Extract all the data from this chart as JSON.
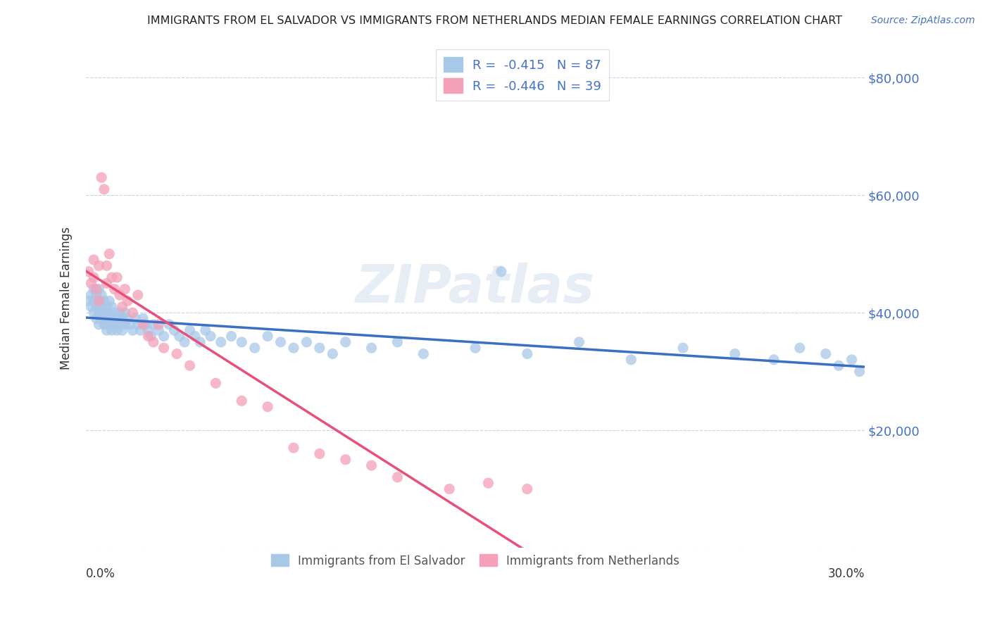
{
  "title": "IMMIGRANTS FROM EL SALVADOR VS IMMIGRANTS FROM NETHERLANDS MEDIAN FEMALE EARNINGS CORRELATION CHART",
  "source": "Source: ZipAtlas.com",
  "ylabel": "Median Female Earnings",
  "watermark": "ZIPatlas",
  "el_salvador": {
    "color": "#a8c8e8",
    "line_color": "#3a6fc4",
    "R": -0.415,
    "N": 87,
    "x": [
      0.001,
      0.002,
      0.002,
      0.003,
      0.003,
      0.003,
      0.004,
      0.004,
      0.004,
      0.005,
      0.005,
      0.005,
      0.005,
      0.006,
      0.006,
      0.006,
      0.007,
      0.007,
      0.007,
      0.008,
      0.008,
      0.008,
      0.009,
      0.009,
      0.009,
      0.01,
      0.01,
      0.01,
      0.011,
      0.011,
      0.012,
      0.012,
      0.013,
      0.013,
      0.014,
      0.014,
      0.015,
      0.015,
      0.016,
      0.017,
      0.018,
      0.019,
      0.02,
      0.021,
      0.022,
      0.023,
      0.024,
      0.025,
      0.026,
      0.028,
      0.03,
      0.032,
      0.034,
      0.036,
      0.038,
      0.04,
      0.042,
      0.044,
      0.046,
      0.048,
      0.052,
      0.056,
      0.06,
      0.065,
      0.07,
      0.075,
      0.08,
      0.085,
      0.09,
      0.095,
      0.1,
      0.11,
      0.12,
      0.13,
      0.15,
      0.16,
      0.17,
      0.19,
      0.21,
      0.23,
      0.25,
      0.265,
      0.275,
      0.285,
      0.29,
      0.295,
      0.298
    ],
    "y": [
      42000,
      43000,
      41000,
      40000,
      42000,
      44000,
      41000,
      39000,
      43000,
      40000,
      38000,
      42000,
      44000,
      39000,
      41000,
      43000,
      40000,
      38000,
      42000,
      39000,
      41000,
      37000,
      40000,
      38000,
      42000,
      39000,
      41000,
      37000,
      40000,
      38000,
      39000,
      37000,
      40000,
      38000,
      39000,
      37000,
      38000,
      40000,
      39000,
      38000,
      37000,
      39000,
      38000,
      37000,
      39000,
      38000,
      37000,
      36000,
      38000,
      37000,
      36000,
      38000,
      37000,
      36000,
      35000,
      37000,
      36000,
      35000,
      37000,
      36000,
      35000,
      36000,
      35000,
      34000,
      36000,
      35000,
      34000,
      35000,
      34000,
      33000,
      35000,
      34000,
      35000,
      33000,
      34000,
      47000,
      33000,
      35000,
      32000,
      34000,
      33000,
      32000,
      34000,
      33000,
      31000,
      32000,
      30000
    ]
  },
  "netherlands": {
    "color": "#f4a0b8",
    "line_color": "#e8507a",
    "R": -0.446,
    "N": 39,
    "x": [
      0.001,
      0.002,
      0.003,
      0.003,
      0.004,
      0.005,
      0.005,
      0.006,
      0.007,
      0.008,
      0.008,
      0.009,
      0.01,
      0.011,
      0.012,
      0.013,
      0.014,
      0.015,
      0.016,
      0.018,
      0.02,
      0.022,
      0.024,
      0.026,
      0.028,
      0.03,
      0.035,
      0.04,
      0.05,
      0.06,
      0.07,
      0.08,
      0.09,
      0.1,
      0.11,
      0.12,
      0.14,
      0.155,
      0.17
    ],
    "y": [
      47000,
      45000,
      49000,
      46000,
      44000,
      48000,
      42000,
      63000,
      61000,
      48000,
      45000,
      50000,
      46000,
      44000,
      46000,
      43000,
      41000,
      44000,
      42000,
      40000,
      43000,
      38000,
      36000,
      35000,
      38000,
      34000,
      33000,
      31000,
      28000,
      25000,
      24000,
      17000,
      16000,
      15000,
      14000,
      12000,
      10000,
      11000,
      10000
    ]
  },
  "ylim": [
    0,
    85000
  ],
  "xlim": [
    0.0,
    0.3
  ],
  "yticks": [
    0,
    20000,
    40000,
    60000,
    80000
  ],
  "ytick_labels_right": [
    "",
    "$20,000",
    "$40,000",
    "$60,000",
    "$80,000"
  ],
  "xticks": [
    0.0,
    0.05,
    0.1,
    0.15,
    0.2,
    0.25,
    0.3
  ],
  "background_color": "#ffffff",
  "grid_color": "#c8d4e4",
  "title_fontsize": 11.5,
  "axis_label_fontsize": 11
}
